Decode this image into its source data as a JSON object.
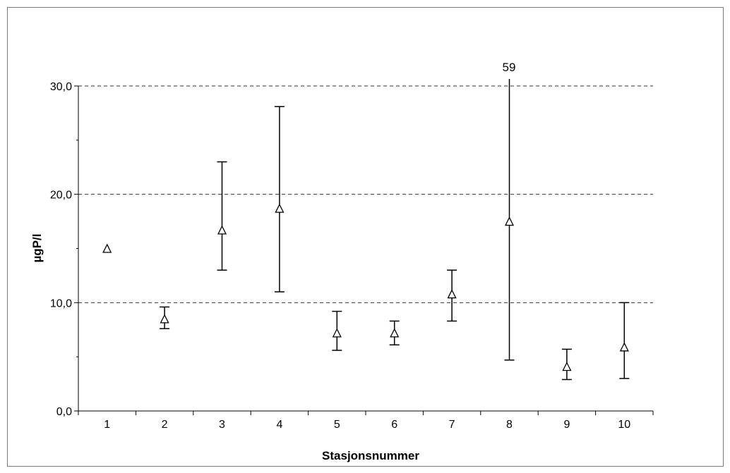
{
  "chart_data": {
    "type": "scatter",
    "title": "",
    "xlabel": "Stasjonsnummer",
    "ylabel": "µgP/l",
    "categories": [
      "1",
      "2",
      "3",
      "4",
      "5",
      "6",
      "7",
      "8",
      "9",
      "10"
    ],
    "ylim": [
      0,
      30
    ],
    "yticks": [
      "0,0",
      "10,0",
      "20,0",
      "30,0"
    ],
    "gridlines_dashed": [
      10,
      20,
      30
    ],
    "grid": true,
    "legend": "none",
    "marker": "open-triangle",
    "values": [
      15.0,
      8.5,
      16.7,
      18.7,
      7.2,
      7.2,
      10.8,
      17.5,
      4.1,
      5.9
    ],
    "error_min": [
      null,
      7.6,
      13.0,
      11.0,
      5.6,
      6.1,
      8.3,
      4.7,
      2.9,
      3.0
    ],
    "error_max": [
      null,
      9.6,
      23.0,
      28.1,
      9.2,
      8.3,
      13.0,
      59,
      5.7,
      10.0
    ],
    "annotations": [
      {
        "category": "8",
        "text": "59"
      }
    ]
  }
}
